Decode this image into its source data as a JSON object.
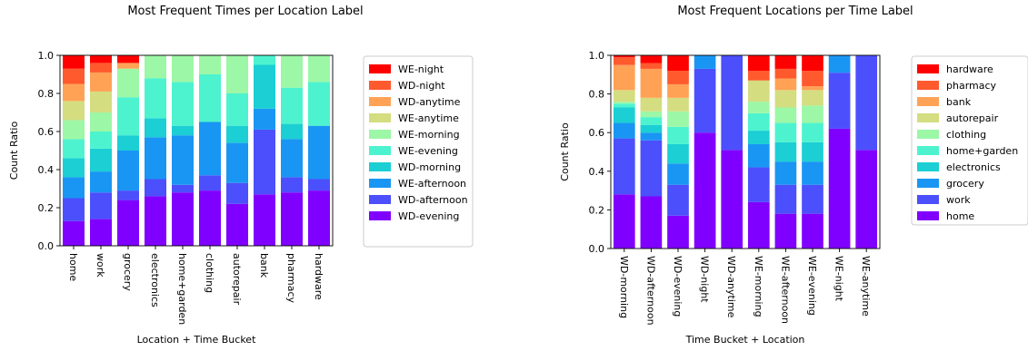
{
  "chart_data": [
    {
      "type": "bar",
      "stacked": true,
      "title": "Most Frequent Times per Location Label",
      "xlabel": "Location + Time Bucket",
      "ylabel": "Count Ratio",
      "ylim": [
        0,
        1.0
      ],
      "yticks": [
        "0.0",
        "0.2",
        "0.4",
        "0.6",
        "0.8",
        "1.0"
      ],
      "legend_position": "right",
      "categories": [
        "home",
        "work",
        "grocery",
        "electronics",
        "home+garden",
        "clothing",
        "autorepair",
        "bank",
        "pharmacy",
        "hardware"
      ],
      "series": [
        {
          "name": "WD-evening",
          "color": "#8000ff",
          "values": [
            0.13,
            0.14,
            0.24,
            0.26,
            0.28,
            0.29,
            0.22,
            0.27,
            0.28,
            0.29
          ]
        },
        {
          "name": "WD-afternoon",
          "color": "#4c4ffc",
          "values": [
            0.12,
            0.14,
            0.05,
            0.09,
            0.04,
            0.08,
            0.11,
            0.34,
            0.08,
            0.06
          ]
        },
        {
          "name": "WE-afternoon",
          "color": "#1996f3",
          "values": [
            0.11,
            0.11,
            0.21,
            0.22,
            0.26,
            0.28,
            0.21,
            0.11,
            0.2,
            0.28
          ]
        },
        {
          "name": "WD-morning",
          "color": "#1bcfd4",
          "values": [
            0.1,
            0.12,
            0.08,
            0.1,
            0.05,
            0.0,
            0.09,
            0.23,
            0.08,
            0.0
          ]
        },
        {
          "name": "WE-evening",
          "color": "#4df3ce",
          "values": [
            0.1,
            0.09,
            0.2,
            0.21,
            0.23,
            0.25,
            0.17,
            0.05,
            0.19,
            0.23
          ]
        },
        {
          "name": "WE-morning",
          "color": "#9cf7a6",
          "values": [
            0.1,
            0.1,
            0.15,
            0.12,
            0.14,
            0.1,
            0.2,
            0.0,
            0.17,
            0.14
          ]
        },
        {
          "name": "WE-anytime",
          "color": "#d4dd80",
          "values": [
            0.1,
            0.11,
            0.0,
            0.0,
            0.0,
            0.0,
            0.0,
            0.0,
            0.0,
            0.0
          ]
        },
        {
          "name": "WD-anytime",
          "color": "#ffa256",
          "values": [
            0.09,
            0.1,
            0.03,
            0.0,
            0.0,
            0.0,
            0.0,
            0.0,
            0.0,
            0.0
          ]
        },
        {
          "name": "WD-night",
          "color": "#ff5a2e",
          "values": [
            0.08,
            0.05,
            0.0,
            0.0,
            0.0,
            0.0,
            0.0,
            0.0,
            0.0,
            0.0
          ]
        },
        {
          "name": "WE-night",
          "color": "#ff0000",
          "values": [
            0.07,
            0.04,
            0.04,
            0.0,
            0.0,
            0.0,
            0.0,
            0.0,
            0.0,
            0.0
          ]
        }
      ]
    },
    {
      "type": "bar",
      "stacked": true,
      "title": "Most Frequent Locations per Time Label",
      "xlabel": "Time Bucket + Location",
      "ylabel": "Count Ratio",
      "ylim": [
        0,
        1.0
      ],
      "yticks": [
        "0.0",
        "0.2",
        "0.4",
        "0.6",
        "0.8",
        "1.0"
      ],
      "legend_position": "right",
      "categories": [
        "WD-morning",
        "WD-afternoon",
        "WD-evening",
        "WD-night",
        "WD-anytime",
        "WE-morning",
        "WE-afternoon",
        "WE-evening",
        "WE-night",
        "WE-anytime"
      ],
      "series": [
        {
          "name": "home",
          "color": "#8000ff",
          "values": [
            0.28,
            0.27,
            0.17,
            0.6,
            0.51,
            0.24,
            0.18,
            0.18,
            0.62,
            0.51
          ]
        },
        {
          "name": "work",
          "color": "#4c4ffc",
          "values": [
            0.29,
            0.29,
            0.16,
            0.33,
            0.49,
            0.18,
            0.15,
            0.15,
            0.29,
            0.49
          ]
        },
        {
          "name": "grocery",
          "color": "#1996f3",
          "values": [
            0.08,
            0.04,
            0.11,
            0.07,
            0.0,
            0.12,
            0.12,
            0.12,
            0.09,
            0.0
          ]
        },
        {
          "name": "electronics",
          "color": "#1bcfd4",
          "values": [
            0.08,
            0.04,
            0.1,
            0.0,
            0.0,
            0.07,
            0.1,
            0.1,
            0.0,
            0.0
          ]
        },
        {
          "name": "home+garden",
          "color": "#4df3ce",
          "values": [
            0.02,
            0.04,
            0.09,
            0.0,
            0.0,
            0.09,
            0.1,
            0.1,
            0.0,
            0.0
          ]
        },
        {
          "name": "clothing",
          "color": "#9cf7a6",
          "values": [
            0.01,
            0.03,
            0.08,
            0.0,
            0.0,
            0.06,
            0.08,
            0.09,
            0.0,
            0.0
          ]
        },
        {
          "name": "autorepair",
          "color": "#d4dd80",
          "values": [
            0.06,
            0.07,
            0.07,
            0.0,
            0.0,
            0.11,
            0.09,
            0.08,
            0.0,
            0.0
          ]
        },
        {
          "name": "bank",
          "color": "#ffa256",
          "values": [
            0.13,
            0.15,
            0.07,
            0.0,
            0.0,
            0.0,
            0.06,
            0.02,
            0.0,
            0.0
          ]
        },
        {
          "name": "pharmacy",
          "color": "#ff5a2e",
          "values": [
            0.04,
            0.03,
            0.07,
            0.0,
            0.0,
            0.05,
            0.05,
            0.08,
            0.0,
            0.0
          ]
        },
        {
          "name": "hardware",
          "color": "#ff0000",
          "values": [
            0.01,
            0.04,
            0.08,
            0.0,
            0.0,
            0.08,
            0.07,
            0.08,
            0.0,
            0.0
          ]
        }
      ]
    }
  ]
}
